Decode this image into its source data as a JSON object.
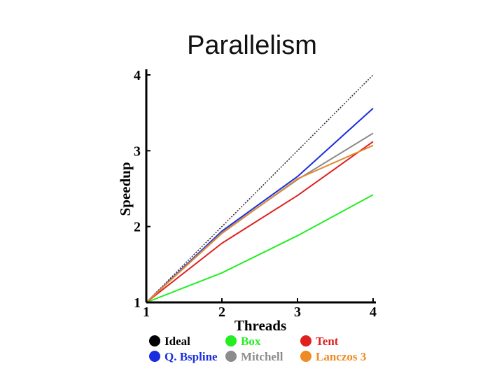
{
  "slide": {
    "title": "Parallelism"
  },
  "chart_data": {
    "type": "line",
    "title": "Parallelism",
    "xlabel": "Threads",
    "ylabel": "Speedup",
    "x": [
      1,
      2,
      3,
      4
    ],
    "xlim": [
      1,
      4
    ],
    "ylim": [
      1,
      4
    ],
    "xticks": [
      "1",
      "2",
      "3",
      "4"
    ],
    "yticks": [
      "1",
      "2",
      "3",
      "4"
    ],
    "grid": false,
    "legend_position": "bottom",
    "series": [
      {
        "name": "Ideal",
        "color": "#333333",
        "legend_color": "#000000",
        "style": "dotted",
        "values": [
          1,
          2,
          3,
          4
        ]
      },
      {
        "name": "Box",
        "color": "#22ee22",
        "legend_color": "#22ee22",
        "style": "solid",
        "values": [
          1,
          1.39,
          1.88,
          2.42
        ]
      },
      {
        "name": "Tent",
        "color": "#e02020",
        "legend_color": "#e02020",
        "style": "solid",
        "values": [
          1,
          1.78,
          2.41,
          3.12
        ]
      },
      {
        "name": "Q. Bspline",
        "color": "#1a2ee0",
        "legend_color": "#1a2ee0",
        "style": "solid",
        "values": [
          1,
          1.94,
          2.66,
          3.56
        ]
      },
      {
        "name": "Mitchell",
        "color": "#8c8c8c",
        "legend_color": "#8c8c8c",
        "style": "solid",
        "values": [
          1,
          1.92,
          2.62,
          3.23
        ]
      },
      {
        "name": "Lanczos 3",
        "color": "#e08a30",
        "legend_color": "#f08a24",
        "style": "solid",
        "values": [
          1,
          1.91,
          2.63,
          3.07
        ]
      }
    ]
  }
}
